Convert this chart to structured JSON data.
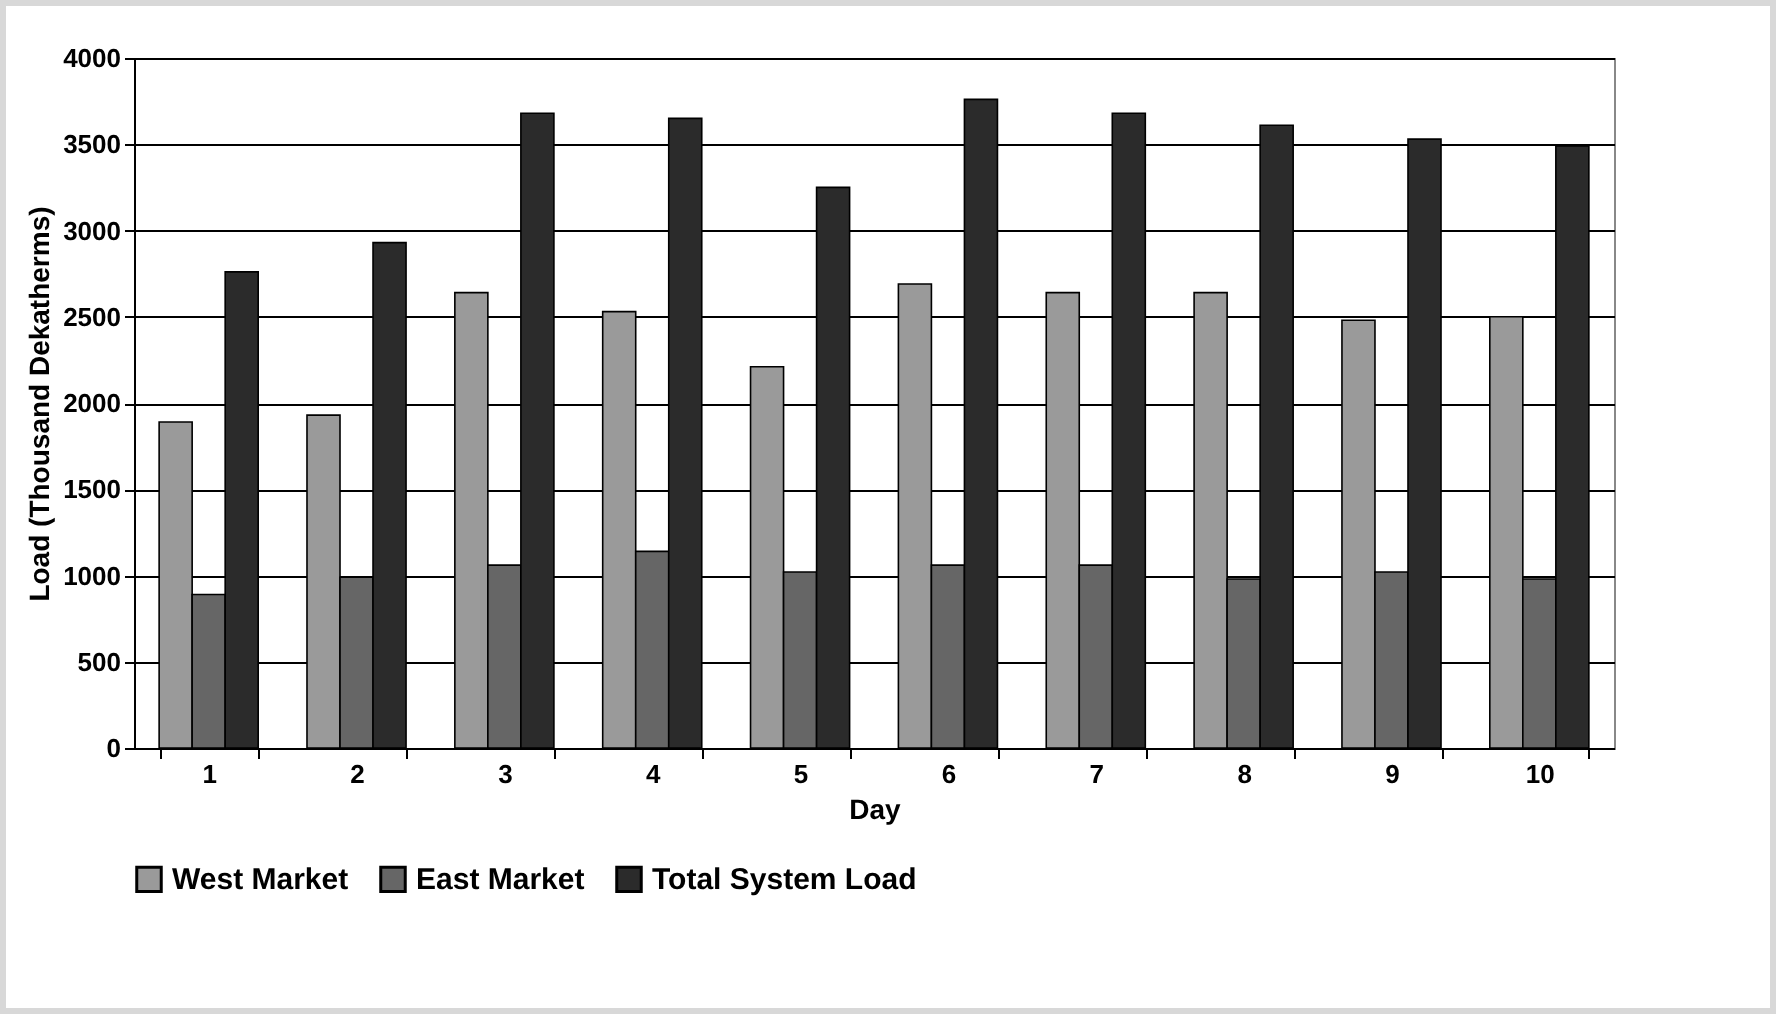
{
  "chart_data": {
    "type": "bar",
    "xlabel": "Day",
    "ylabel": "Load (Thousand Dekatherms)",
    "categories": [
      "1",
      "2",
      "3",
      "4",
      "5",
      "6",
      "7",
      "8",
      "9",
      "10"
    ],
    "series": [
      {
        "name": "West Market",
        "color": "#9a9a9a",
        "values": [
          1890,
          1930,
          2640,
          2530,
          2210,
          2690,
          2640,
          2640,
          2480,
          2500
        ]
      },
      {
        "name": "East Market",
        "color": "#666666",
        "values": [
          890,
          990,
          1060,
          1140,
          1020,
          1060,
          1060,
          980,
          1020,
          980
        ]
      },
      {
        "name": "Total System Load",
        "color": "#2b2b2b",
        "values": [
          2760,
          2930,
          3680,
          3650,
          3250,
          3760,
          3680,
          3610,
          3530,
          3490
        ]
      }
    ],
    "ylim": [
      0,
      4000
    ],
    "yticks": [
      0,
      500,
      1000,
      1500,
      2000,
      2500,
      3000,
      3500,
      4000
    ],
    "grid": "y",
    "legend": "bottom"
  }
}
